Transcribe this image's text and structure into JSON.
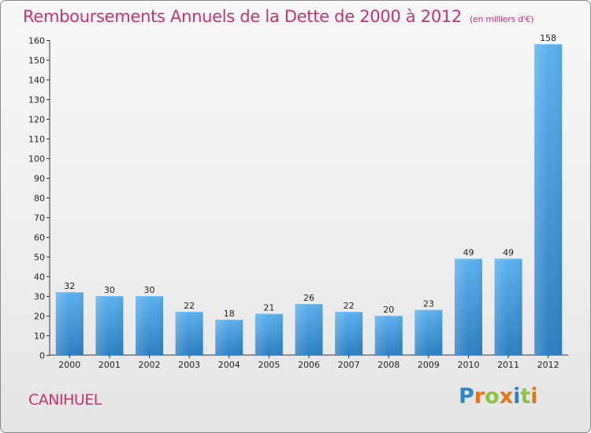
{
  "header": {
    "title": "Remboursements Annuels de la Dette de 2000 à 2012",
    "subtitle": "(en milliers d'€)"
  },
  "location": "CANIHUEL",
  "logo": {
    "text": "Proxiti",
    "letters": [
      "P",
      "r",
      "o",
      "x",
      "i",
      "t",
      "i"
    ],
    "colors": [
      "#2e86c8",
      "#e8731a",
      "#8bc53f",
      "#e8731a",
      "#2e86c8",
      "#8bc53f",
      "#e8731a"
    ]
  },
  "chart_data": {
    "type": "bar",
    "categories": [
      "2000",
      "2001",
      "2002",
      "2003",
      "2004",
      "2005",
      "2006",
      "2007",
      "2008",
      "2009",
      "2010",
      "2011",
      "2012"
    ],
    "values": [
      32,
      30,
      30,
      22,
      18,
      21,
      26,
      22,
      20,
      23,
      49,
      49,
      158
    ],
    "ylim": [
      0,
      160
    ],
    "yticks": [
      0,
      10,
      20,
      30,
      40,
      50,
      60,
      70,
      80,
      90,
      100,
      110,
      120,
      130,
      140,
      150,
      160
    ],
    "grid": false,
    "bar_color": "#4aa3e6",
    "title": "Remboursements Annuels de la Dette de 2000 à 2012",
    "subtitle": "(en milliers d'€)"
  }
}
